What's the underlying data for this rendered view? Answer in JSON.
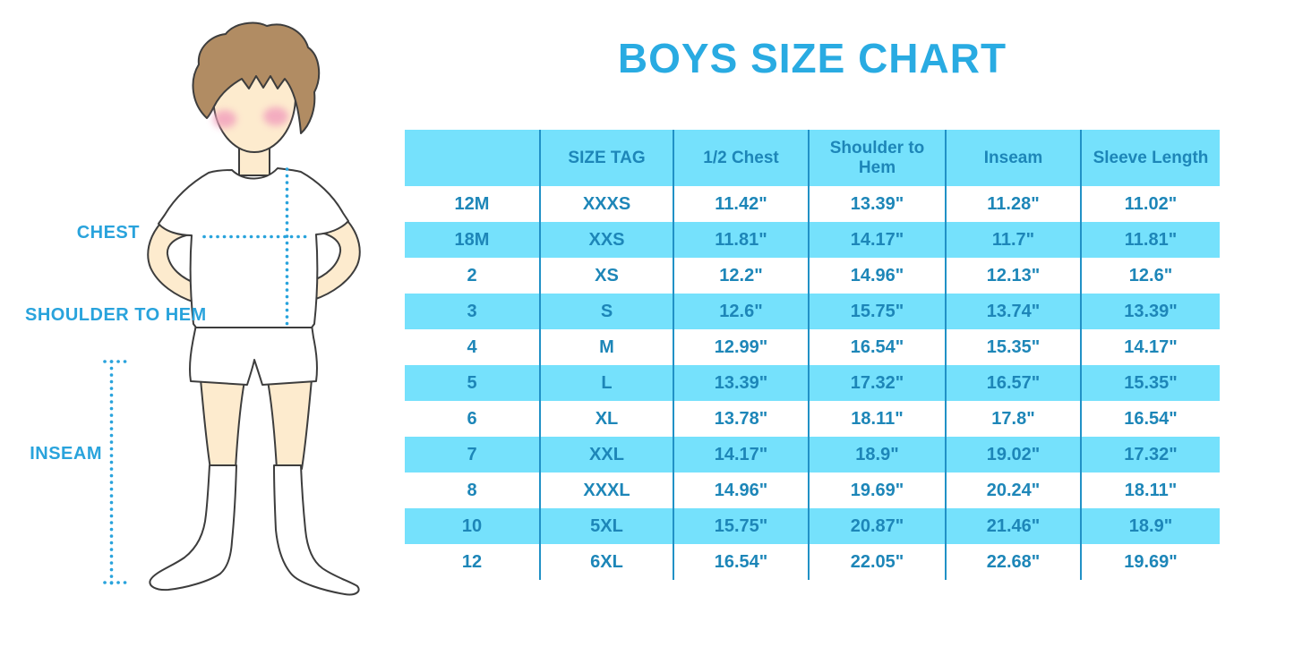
{
  "title": "BOYS SIZE CHART",
  "figure": {
    "labels": {
      "chest": "CHEST",
      "shoulder_to_hem": "SHOULDER TO HEM",
      "inseam": "INSEAM"
    }
  },
  "chart_data": {
    "type": "table",
    "title": "BOYS SIZE CHART",
    "columns": [
      "",
      "SIZE TAG",
      "1/2 Chest",
      "Shoulder to Hem",
      "Inseam",
      "Sleeve Length"
    ],
    "rows": [
      [
        "12M",
        "XXXS",
        "11.42\"",
        "13.39\"",
        "11.28\"",
        "11.02\""
      ],
      [
        "18M",
        "XXS",
        "11.81\"",
        "14.17\"",
        "11.7\"",
        "11.81\""
      ],
      [
        "2",
        "XS",
        "12.2\"",
        "14.96\"",
        "12.13\"",
        "12.6\""
      ],
      [
        "3",
        "S",
        "12.6\"",
        "15.75\"",
        "13.74\"",
        "13.39\""
      ],
      [
        "4",
        "M",
        "12.99\"",
        "16.54\"",
        "15.35\"",
        "14.17\""
      ],
      [
        "5",
        "L",
        "13.39\"",
        "17.32\"",
        "16.57\"",
        "15.35\""
      ],
      [
        "6",
        "XL",
        "13.78\"",
        "18.11\"",
        "17.8\"",
        "16.54\""
      ],
      [
        "7",
        "XXL",
        "14.17\"",
        "18.9\"",
        "19.02\"",
        "17.32\""
      ],
      [
        "8",
        "XXXL",
        "14.96\"",
        "19.69\"",
        "20.24\"",
        "18.11\""
      ],
      [
        "10",
        "5XL",
        "15.75\"",
        "20.87\"",
        "21.46\"",
        "18.9\""
      ],
      [
        "12",
        "6XL",
        "16.54\"",
        "22.05\"",
        "22.68\"",
        "19.69\""
      ]
    ]
  },
  "colors": {
    "accent_blue": "#29ABE2",
    "table_text_blue": "#1D86B8",
    "row_highlight_cyan": "#75E1FC",
    "column_divider_blue": "#2191C6",
    "measure_line_blue": "#29A3DC",
    "hair_brown": "#B18C63",
    "skin": "#FDEBCE",
    "cheek_pink": "#F2A3BE"
  }
}
